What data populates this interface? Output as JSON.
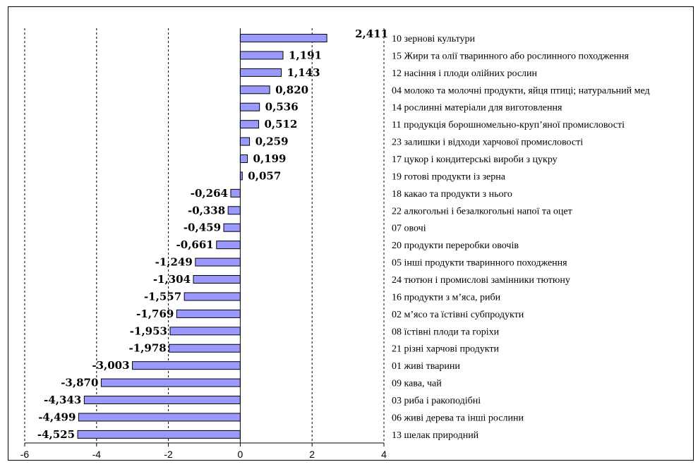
{
  "chart_data": {
    "type": "bar",
    "orientation": "horizontal",
    "title": "",
    "xlabel": "",
    "ylabel": "",
    "xlim": [
      -6,
      4
    ],
    "xticks": [
      -6,
      -4,
      -2,
      0,
      2,
      4
    ],
    "xtick_labels": [
      "-6",
      "-4",
      "-2",
      "0",
      "2",
      "4"
    ],
    "grid": "vertical dashed",
    "legend": "none",
    "bar_color": "#9999ff",
    "categories": [
      "10 зернові культури",
      "15 Жири та олії тваринного або рослинного походження",
      "12 насіння і плоди олійних рослин",
      "04 молоко та молочні продукти, яйця птиці; натуральний мед",
      "14 рослинні матеріали для виготовлення",
      "11 продукція борошномельно-круп’яної промисловості",
      "23 залишки і відходи харчової промисловості",
      "17 цукор і кондитерські вироби з цукру",
      "19 готові продукти із зерна",
      "18 какао та продукти з нього",
      "22 алкогольні і безалкогольні напої та оцет",
      "07 овочі",
      "20 продукти переробки овочів",
      "05 інші продукти тваринного походження",
      "24 тютюн і промислові замінники тютюну",
      "16 продукти з м’яса, риби",
      "02 м’ясо та їстівні субпродукти",
      "08 їстівні плоди та горіхи",
      "21 різні харчові продукти",
      "01 живі тварини",
      "09 кава, чай",
      "03 риба і ракоподібні",
      "06 живі дерева та інші рослини",
      "13 шелак природний"
    ],
    "values": [
      2.411,
      1.191,
      1.143,
      0.82,
      0.536,
      0.512,
      0.259,
      0.199,
      0.057,
      -0.264,
      -0.338,
      -0.459,
      -0.661,
      -1.249,
      -1.304,
      -1.557,
      -1.769,
      -1.953,
      -1.978,
      -3.003,
      -3.87,
      -4.343,
      -4.499,
      -4.525
    ],
    "value_labels": [
      "2,411",
      "1,191",
      "1,143",
      "0,820",
      "0,536",
      "0,512",
      "0,259",
      "0,199",
      "0,057",
      "-0,264",
      "-0,338",
      "-0,459",
      "-0,661",
      "-1,249",
      "-1,304",
      "-1,557",
      "-1,769",
      "-1,953",
      "-1,978",
      "-3,003",
      "-3,870",
      "-4,343",
      "-4,499",
      "-4,525"
    ]
  }
}
